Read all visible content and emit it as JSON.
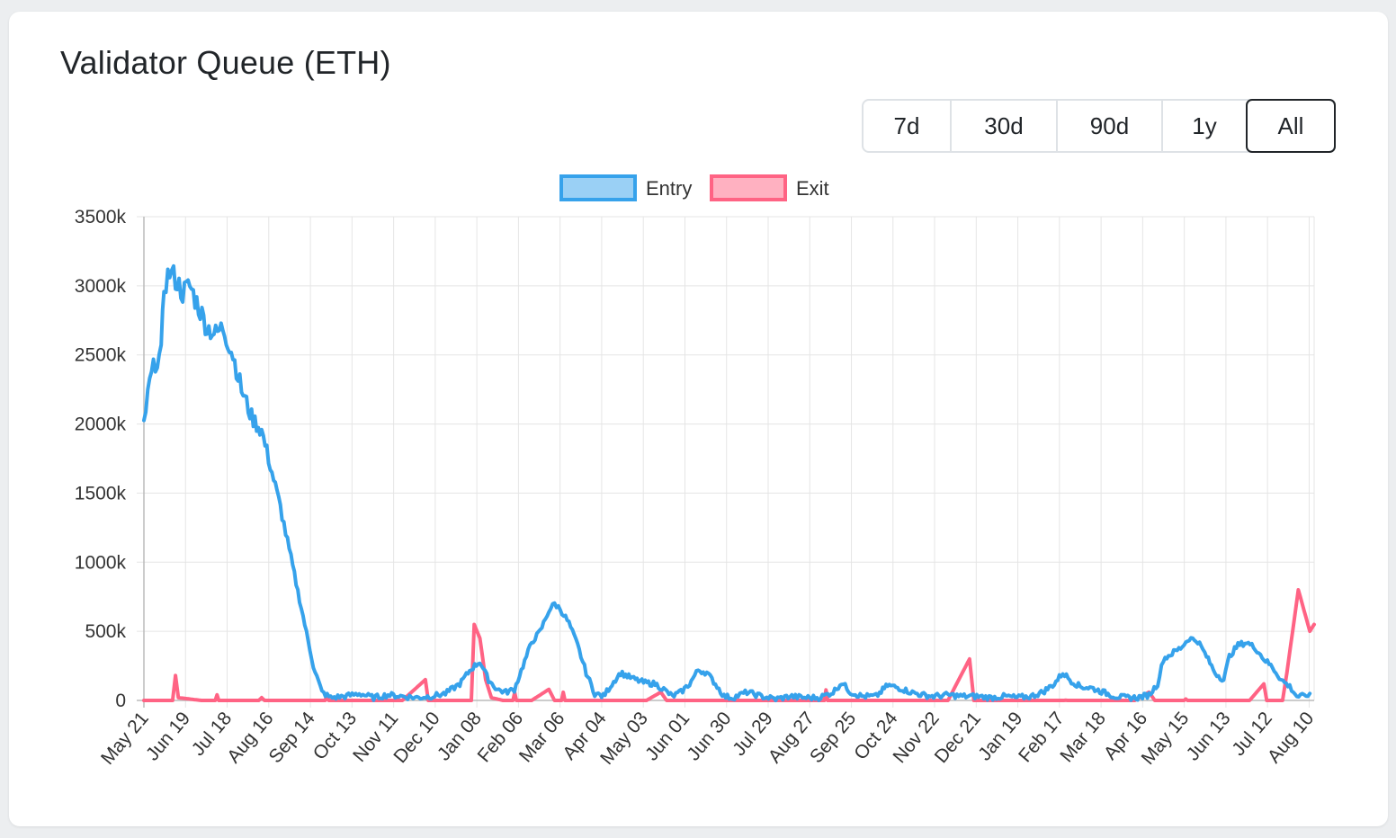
{
  "card": {
    "title": "Validator Queue (ETH)"
  },
  "range_selector": {
    "options": [
      "7d",
      "30d",
      "90d",
      "1y",
      "All"
    ],
    "active": "All"
  },
  "chart_data": {
    "type": "line",
    "legend_position": "top-center",
    "grid": true,
    "xlabel": "",
    "ylabel": "",
    "ylim": [
      0,
      3500000
    ],
    "y_ticks": [
      0,
      500000,
      1000000,
      1500000,
      2000000,
      2500000,
      3000000,
      3500000
    ],
    "y_tick_labels": [
      "0",
      "500k",
      "1000k",
      "1500k",
      "2000k",
      "2500k",
      "3000k",
      "3500k"
    ],
    "x_tick_labels": [
      "May 21",
      "Jun 19",
      "Jul 18",
      "Aug 16",
      "Sep 14",
      "Oct 13",
      "Nov 11",
      "Dec 10",
      "Jan 08",
      "Feb 06",
      "Mar 06",
      "Apr 04",
      "May 03",
      "Jun 01",
      "Jun 30",
      "Jul 29",
      "Aug 27",
      "Sep 25",
      "Oct 24",
      "Nov 22",
      "Dec 21",
      "Jan 19",
      "Feb 17",
      "Mar 18",
      "Apr 16",
      "May 15",
      "Jun 13",
      "Jul 12",
      "Aug 10"
    ],
    "x_range_days": [
      0,
      815
    ],
    "series": [
      {
        "name": "Entry",
        "color": "#36a2eb",
        "fill": "#9ad0f5",
        "points": [
          [
            0,
            2000000
          ],
          [
            4,
            2300000
          ],
          [
            8,
            2450000
          ],
          [
            12,
            2500000
          ],
          [
            14,
            3000000
          ],
          [
            18,
            3100000
          ],
          [
            22,
            3050000
          ],
          [
            27,
            2950000
          ],
          [
            32,
            3000000
          ],
          [
            38,
            2850000
          ],
          [
            44,
            2700000
          ],
          [
            50,
            2650000
          ],
          [
            55,
            2700000
          ],
          [
            62,
            2500000
          ],
          [
            68,
            2250000
          ],
          [
            75,
            2050000
          ],
          [
            82,
            1950000
          ],
          [
            88,
            1700000
          ],
          [
            95,
            1400000
          ],
          [
            100,
            1150000
          ],
          [
            106,
            850000
          ],
          [
            112,
            550000
          ],
          [
            118,
            250000
          ],
          [
            124,
            60000
          ],
          [
            130,
            20000
          ],
          [
            140,
            30000
          ],
          [
            150,
            50000
          ],
          [
            160,
            20000
          ],
          [
            170,
            40000
          ],
          [
            180,
            30000
          ],
          [
            190,
            20000
          ],
          [
            200,
            30000
          ],
          [
            210,
            50000
          ],
          [
            220,
            120000
          ],
          [
            228,
            230000
          ],
          [
            234,
            280000
          ],
          [
            240,
            150000
          ],
          [
            246,
            80000
          ],
          [
            252,
            60000
          ],
          [
            258,
            80000
          ],
          [
            264,
            250000
          ],
          [
            270,
            420000
          ],
          [
            276,
            500000
          ],
          [
            282,
            650000
          ],
          [
            286,
            700000
          ],
          [
            290,
            660000
          ],
          [
            296,
            560000
          ],
          [
            302,
            400000
          ],
          [
            308,
            200000
          ],
          [
            314,
            50000
          ],
          [
            320,
            30000
          ],
          [
            326,
            120000
          ],
          [
            332,
            200000
          ],
          [
            340,
            160000
          ],
          [
            348,
            130000
          ],
          [
            356,
            120000
          ],
          [
            362,
            80000
          ],
          [
            368,
            30000
          ],
          [
            374,
            60000
          ],
          [
            380,
            120000
          ],
          [
            386,
            220000
          ],
          [
            392,
            200000
          ],
          [
            398,
            120000
          ],
          [
            404,
            30000
          ],
          [
            410,
            20000
          ],
          [
            420,
            60000
          ],
          [
            430,
            30000
          ],
          [
            440,
            10000
          ],
          [
            450,
            30000
          ],
          [
            460,
            20000
          ],
          [
            470,
            20000
          ],
          [
            480,
            60000
          ],
          [
            486,
            130000
          ],
          [
            492,
            60000
          ],
          [
            500,
            30000
          ],
          [
            510,
            30000
          ],
          [
            518,
            110000
          ],
          [
            526,
            90000
          ],
          [
            534,
            60000
          ],
          [
            542,
            40000
          ],
          [
            550,
            30000
          ],
          [
            560,
            40000
          ],
          [
            570,
            30000
          ],
          [
            580,
            30000
          ],
          [
            590,
            20000
          ],
          [
            600,
            30000
          ],
          [
            608,
            20000
          ],
          [
            618,
            30000
          ],
          [
            626,
            60000
          ],
          [
            634,
            120000
          ],
          [
            640,
            200000
          ],
          [
            646,
            140000
          ],
          [
            652,
            100000
          ],
          [
            660,
            90000
          ],
          [
            668,
            60000
          ],
          [
            676,
            30000
          ],
          [
            684,
            20000
          ],
          [
            692,
            20000
          ],
          [
            700,
            40000
          ],
          [
            706,
            120000
          ],
          [
            710,
            300000
          ],
          [
            716,
            340000
          ],
          [
            722,
            380000
          ],
          [
            728,
            450000
          ],
          [
            734,
            430000
          ],
          [
            740,
            320000
          ],
          [
            746,
            200000
          ],
          [
            752,
            150000
          ],
          [
            756,
            320000
          ],
          [
            762,
            400000
          ],
          [
            768,
            420000
          ],
          [
            774,
            380000
          ],
          [
            780,
            300000
          ],
          [
            786,
            240000
          ],
          [
            792,
            150000
          ],
          [
            798,
            100000
          ],
          [
            803,
            30000
          ],
          [
            808,
            30000
          ],
          [
            812,
            50000
          ]
        ]
      },
      {
        "name": "Exit",
        "color": "#ff6384",
        "fill": "#ffb1c1",
        "points": [
          [
            0,
            0
          ],
          [
            20,
            0
          ],
          [
            22,
            180000
          ],
          [
            24,
            20000
          ],
          [
            40,
            0
          ],
          [
            80,
            0
          ],
          [
            82,
            20000
          ],
          [
            84,
            0
          ],
          [
            120,
            0
          ],
          [
            130,
            0
          ],
          [
            180,
            0
          ],
          [
            196,
            150000
          ],
          [
            198,
            0
          ],
          [
            228,
            0
          ],
          [
            230,
            550000
          ],
          [
            234,
            450000
          ],
          [
            238,
            150000
          ],
          [
            242,
            20000
          ],
          [
            250,
            0
          ],
          [
            270,
            0
          ],
          [
            282,
            80000
          ],
          [
            286,
            0
          ],
          [
            350,
            0
          ],
          [
            360,
            60000
          ],
          [
            364,
            0
          ],
          [
            400,
            0
          ],
          [
            450,
            0
          ],
          [
            500,
            0
          ],
          [
            560,
            0
          ],
          [
            575,
            300000
          ],
          [
            578,
            0
          ],
          [
            600,
            0
          ],
          [
            690,
            0
          ],
          [
            700,
            60000
          ],
          [
            704,
            0
          ],
          [
            770,
            0
          ],
          [
            780,
            120000
          ],
          [
            782,
            0
          ],
          [
            793,
            0
          ],
          [
            796,
            200000
          ],
          [
            800,
            500000
          ],
          [
            804,
            800000
          ],
          [
            808,
            650000
          ],
          [
            812,
            500000
          ],
          [
            815,
            550000
          ]
        ]
      }
    ]
  }
}
